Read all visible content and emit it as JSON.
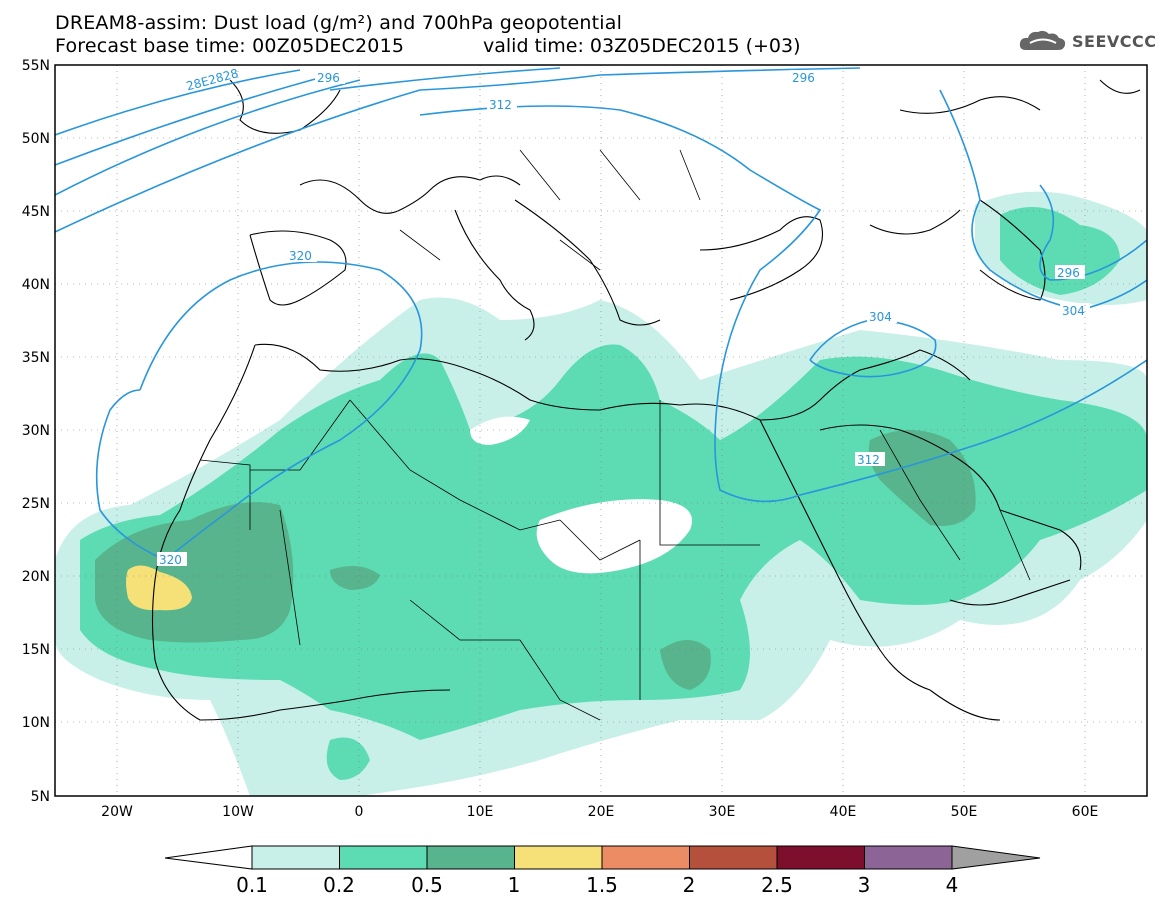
{
  "header": {
    "title_line1": "DREAM8-assim: Dust load (g/m²) and 700hPa geopotential",
    "title_line2": "Forecast base time: 00Z05DEC2015",
    "valid_time": "valid time: 03Z05DEC2015 (+03)",
    "logo_text": "SEEVCCC"
  },
  "map": {
    "lat_labels": [
      "55N",
      "50N",
      "45N",
      "40N",
      "35N",
      "30N",
      "25N",
      "20N",
      "15N",
      "10N",
      "5N"
    ],
    "lon_labels": [
      "20W",
      "10W",
      "0",
      "10E",
      "20E",
      "30E",
      "40E",
      "50E",
      "60E"
    ],
    "contour_labels": [
      "28E2828",
      "296",
      "296",
      "312",
      "320",
      "304",
      "296",
      "304",
      "312",
      "320"
    ]
  },
  "legend": {
    "breaks": [
      "0.1",
      "0.2",
      "0.5",
      "1",
      "1.5",
      "2",
      "2.5",
      "3",
      "4"
    ],
    "colors": [
      "#c8f0e8",
      "#5ddcb4",
      "#58b48c",
      "#f5e178",
      "#eb8c64",
      "#b4503c",
      "#7d0f2d",
      "#8c6496"
    ]
  },
  "colors": {
    "dust_light": "#c8f0e8",
    "dust_medium": "#5ddcb4",
    "dust_dark": "#58b48c",
    "dust_yellow": "#f5e178",
    "contour": "#2896dc"
  }
}
